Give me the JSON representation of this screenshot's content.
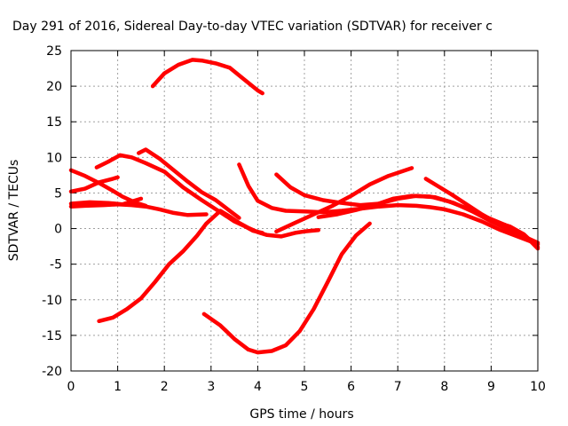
{
  "chart_data": {
    "type": "line",
    "title": "Day 291 of 2016, Sidereal Day-to-day VTEC variation (SDTVAR) for receiver c",
    "xlabel": "GPS time / hours",
    "ylabel": "SDTVAR / TECUs",
    "xlim": [
      0,
      10
    ],
    "ylim": [
      -20,
      25
    ],
    "xticks": [
      0,
      1,
      2,
      3,
      4,
      5,
      6,
      7,
      8,
      9,
      10
    ],
    "yticks": [
      -20,
      -15,
      -10,
      -5,
      0,
      5,
      10,
      15,
      20,
      25
    ],
    "grid": true,
    "legend": "none",
    "color": "#ff0000",
    "series": [
      {
        "x": [
          1.75,
          2.0,
          2.3,
          2.6,
          2.8,
          3.1,
          3.4,
          3.7,
          4.0,
          4.1
        ],
        "y": [
          20.0,
          21.8,
          23.0,
          23.7,
          23.6,
          23.2,
          22.6,
          21.0,
          19.4,
          19.0
        ]
      },
      {
        "x": [
          0.55,
          0.8,
          1.05,
          1.3,
          1.6,
          2.0,
          2.4,
          2.8,
          3.2,
          3.5,
          3.7,
          3.9,
          4.1
        ],
        "y": [
          8.6,
          9.4,
          10.3,
          10.0,
          9.2,
          8.0,
          5.8,
          4.0,
          2.3,
          1.0,
          0.4,
          -0.3,
          -0.6
        ]
      },
      {
        "x": [
          1.45,
          1.6,
          1.9,
          2.2,
          2.5,
          2.8,
          3.1,
          3.4,
          3.6
        ],
        "y": [
          10.6,
          11.1,
          9.8,
          8.2,
          6.6,
          5.1,
          4.0,
          2.5,
          1.5
        ]
      },
      {
        "x": [
          0.0,
          0.3,
          0.6,
          0.9,
          1.1,
          1.4,
          1.6
        ],
        "y": [
          8.2,
          7.4,
          6.4,
          5.3,
          4.5,
          3.6,
          3.2
        ]
      },
      {
        "x": [
          0.0,
          0.3,
          0.6,
          0.9,
          1.0
        ],
        "y": [
          5.2,
          5.6,
          6.5,
          7.0,
          7.2
        ]
      },
      {
        "x": [
          0.0,
          0.3,
          0.7,
          1.0,
          1.3,
          1.6,
          1.9,
          2.2,
          2.5,
          2.9
        ],
        "y": [
          3.1,
          3.2,
          3.3,
          3.4,
          3.3,
          3.1,
          2.7,
          2.2,
          1.9,
          2.0
        ]
      },
      {
        "x": [
          0.0,
          0.4,
          0.8,
          1.1,
          1.5
        ],
        "y": [
          3.5,
          3.7,
          3.6,
          3.4,
          4.2
        ]
      },
      {
        "x": [
          0.6,
          0.9,
          1.2,
          1.5,
          1.8,
          2.1,
          2.4,
          2.7,
          2.9,
          3.2,
          3.4,
          3.6,
          3.8,
          4.0,
          4.2,
          4.5,
          4.8,
          5.0,
          5.3
        ],
        "y": [
          -13.0,
          -12.5,
          -11.3,
          -9.8,
          -7.5,
          -5.0,
          -3.2,
          -1.0,
          0.7,
          2.5,
          1.7,
          0.8,
          0.1,
          -0.5,
          -0.9,
          -1.1,
          -0.6,
          -0.4,
          -0.2
        ]
      },
      {
        "x": [
          3.6,
          3.8,
          4.0,
          4.3,
          4.6,
          5.0,
          5.4,
          5.8,
          6.2,
          6.6,
          7.0,
          7.4,
          7.7,
          8.0,
          8.4,
          8.8,
          9.2,
          9.6,
          10.0
        ],
        "y": [
          9.0,
          6.0,
          3.9,
          2.9,
          2.5,
          2.4,
          2.3,
          2.5,
          2.8,
          3.1,
          3.3,
          3.2,
          3.0,
          2.7,
          2.0,
          1.0,
          -0.2,
          -1.2,
          -2.2
        ]
      },
      {
        "x": [
          4.4,
          4.7,
          5.0,
          5.4,
          5.8,
          6.2,
          6.6,
          7.0,
          7.4,
          7.8,
          8.2,
          8.6,
          9.0,
          9.4,
          9.8,
          10.0
        ],
        "y": [
          7.6,
          5.8,
          4.7,
          4.0,
          3.6,
          3.3,
          3.5,
          4.2,
          4.6,
          4.4,
          3.6,
          2.4,
          1.0,
          -0.2,
          -1.4,
          -2.0
        ]
      },
      {
        "x": [
          4.4,
          4.8,
          5.2,
          5.6,
          6.0,
          6.4,
          6.8,
          7.3
        ],
        "y": [
          -0.4,
          0.8,
          2.0,
          3.2,
          4.6,
          6.2,
          7.4,
          8.5
        ]
      },
      {
        "x": [
          5.3,
          5.7,
          6.1,
          6.5,
          6.9,
          7.3,
          7.7,
          8.1,
          8.5,
          8.9,
          9.3,
          9.7,
          10.0
        ],
        "y": [
          1.6,
          2.0,
          2.6,
          3.3,
          4.2,
          4.6,
          4.5,
          3.8,
          2.8,
          1.6,
          0.5,
          -0.8,
          -2.6
        ]
      },
      {
        "x": [
          7.6,
          7.9,
          8.2,
          8.5,
          8.8,
          9.1,
          9.4,
          9.7,
          10.0
        ],
        "y": [
          7.0,
          5.8,
          4.6,
          3.3,
          2.0,
          0.9,
          0.3,
          -0.8,
          -2.8
        ]
      },
      {
        "x": [
          2.85,
          3.2,
          3.5,
          3.8,
          4.0,
          4.3,
          4.6,
          4.9,
          5.2,
          5.5,
          5.8,
          6.1,
          6.4
        ],
        "y": [
          -12.0,
          -13.6,
          -15.5,
          -17.0,
          -17.4,
          -17.2,
          -16.4,
          -14.4,
          -11.3,
          -7.5,
          -3.6,
          -1.0,
          0.7
        ]
      }
    ]
  }
}
